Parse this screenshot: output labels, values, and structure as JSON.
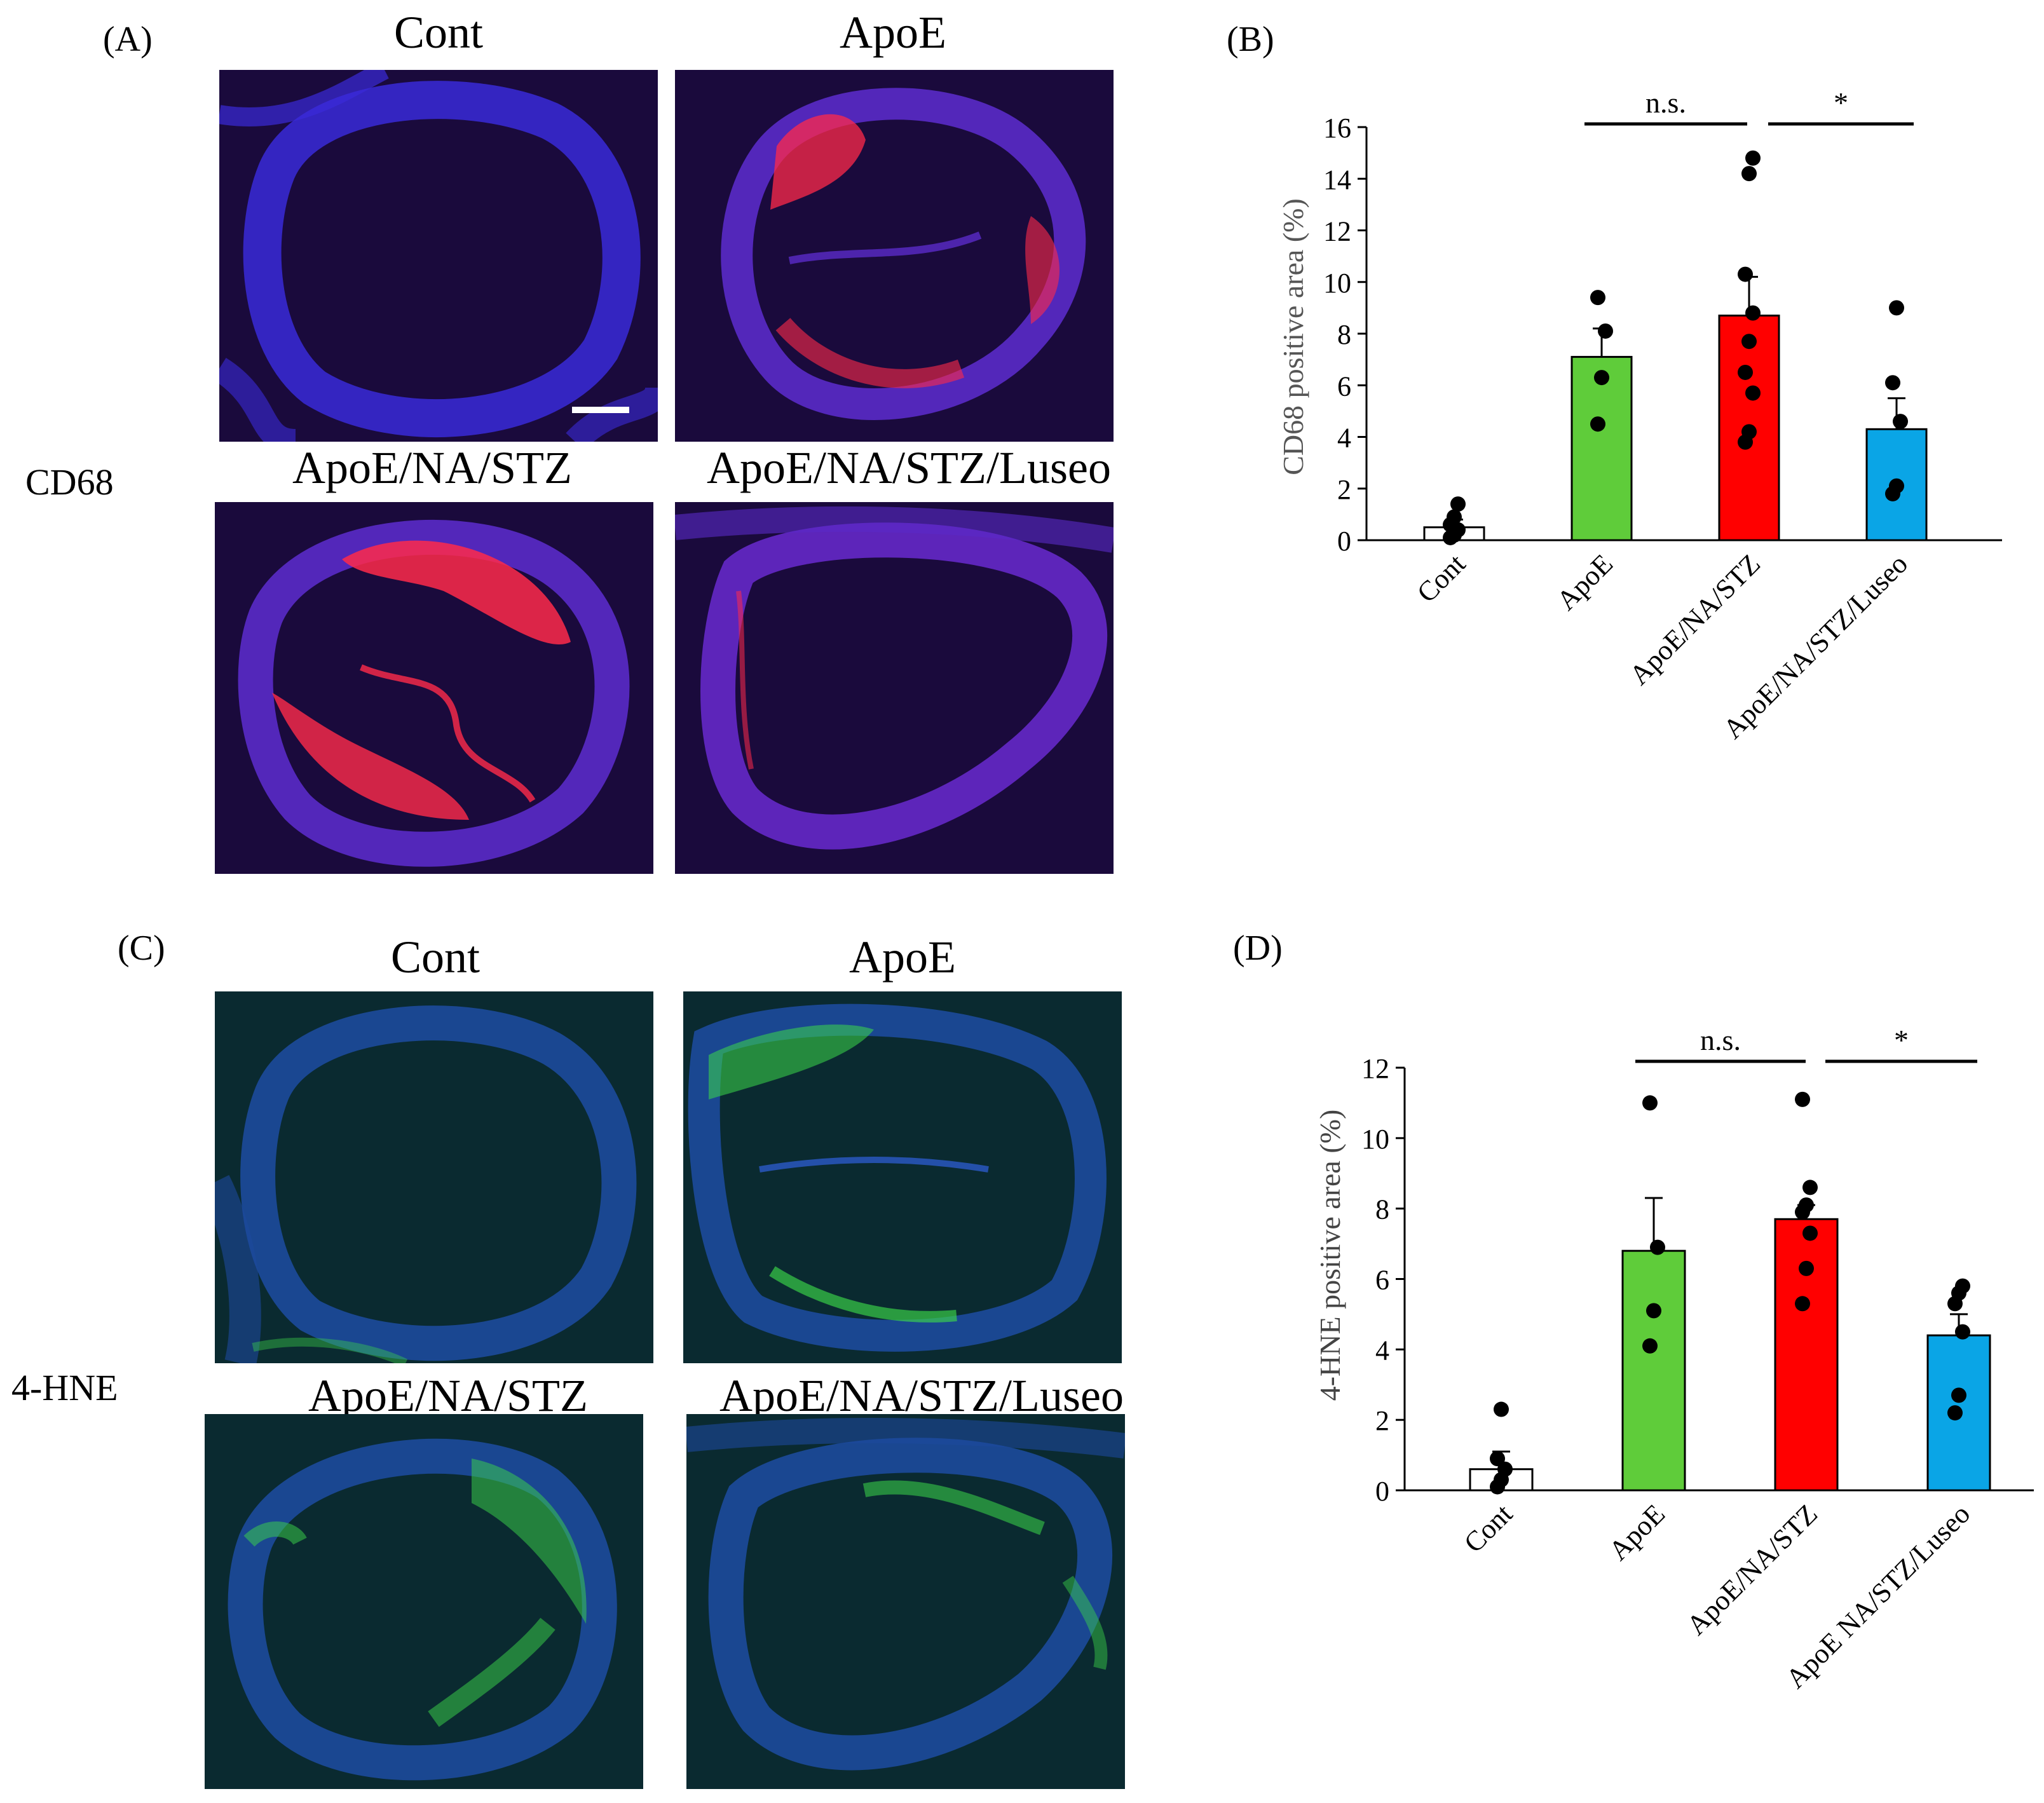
{
  "figure": {
    "panel_a": {
      "letter": "(A)",
      "stain": "CD68",
      "titles": [
        "Cont",
        "ApoE",
        "ApoE/NA/STZ",
        "ApoE/NA/STZ/Luseo"
      ]
    },
    "panel_b": {
      "letter": "(B)"
    },
    "panel_c": {
      "letter": "(C)",
      "stain": "4-HNE",
      "titles": [
        "Cont",
        "ApoE",
        "ApoE/NA/STZ",
        "ApoE/NA/STZ/Luseo"
      ]
    },
    "panel_d": {
      "letter": "(D)"
    }
  },
  "colors": {
    "cont": "#ffffff",
    "apoe": "#5fcc3a",
    "na_stz": "#ff0000",
    "luseo": "#0aa5e6",
    "cd68_bg": "#1a0a3c",
    "cd68_tissue": "#3a2ad8",
    "cd68_signal": "#ff2a4a",
    "hne_bg": "#0a2a30",
    "hne_tissue": "#1c4a9c",
    "hne_signal": "#3cd84a"
  },
  "chart_data": [
    {
      "type": "bar",
      "title": "",
      "xlabel": "",
      "ylabel": "CD68 positive area (%)",
      "ylim": [
        0,
        16
      ],
      "yticks": [
        0,
        2,
        4,
        6,
        8,
        10,
        12,
        14,
        16
      ],
      "categories": [
        "Cont",
        "ApoE",
        "ApoE/NA/STZ",
        "ApoE/NA/STZ/Luseo"
      ],
      "values": [
        0.5,
        7.1,
        8.7,
        4.3
      ],
      "errors": [
        0.3,
        1.1,
        1.5,
        1.2
      ],
      "points": [
        [
          0.1,
          0.2,
          0.4,
          0.6,
          0.9,
          1.4
        ],
        [
          4.5,
          6.3,
          8.1,
          9.4
        ],
        [
          3.8,
          4.2,
          5.7,
          6.5,
          7.7,
          8.8,
          10.3,
          14.2,
          14.8
        ],
        [
          1.8,
          2.1,
          4.6,
          6.1,
          9.0
        ]
      ],
      "significance": [
        {
          "label": "n.s.",
          "from": 1,
          "to": 2
        },
        {
          "label": "*",
          "from": 2,
          "to": 3
        }
      ]
    },
    {
      "type": "bar",
      "title": "",
      "xlabel": "",
      "ylabel": "4-HNE positive area (%)",
      "ylim": [
        0,
        12
      ],
      "yticks": [
        0,
        2,
        4,
        6,
        8,
        10,
        12
      ],
      "categories": [
        "Cont",
        "ApoE",
        "ApoE/NA/STZ",
        "ApoE NA/STZ/Luseo"
      ],
      "values": [
        0.6,
        6.8,
        7.7,
        4.4
      ],
      "errors": [
        0.5,
        1.5,
        0.4,
        0.6
      ],
      "points": [
        [
          0.1,
          0.3,
          0.6,
          0.9,
          2.3
        ],
        [
          4.1,
          5.1,
          6.9,
          11.0
        ],
        [
          5.3,
          6.3,
          7.3,
          7.9,
          8.1,
          8.6,
          11.1
        ],
        [
          2.2,
          2.7,
          4.5,
          5.3,
          5.6,
          5.8
        ]
      ],
      "significance": [
        {
          "label": "n.s.",
          "from": 1,
          "to": 2
        },
        {
          "label": "*",
          "from": 2,
          "to": 3
        }
      ]
    }
  ]
}
